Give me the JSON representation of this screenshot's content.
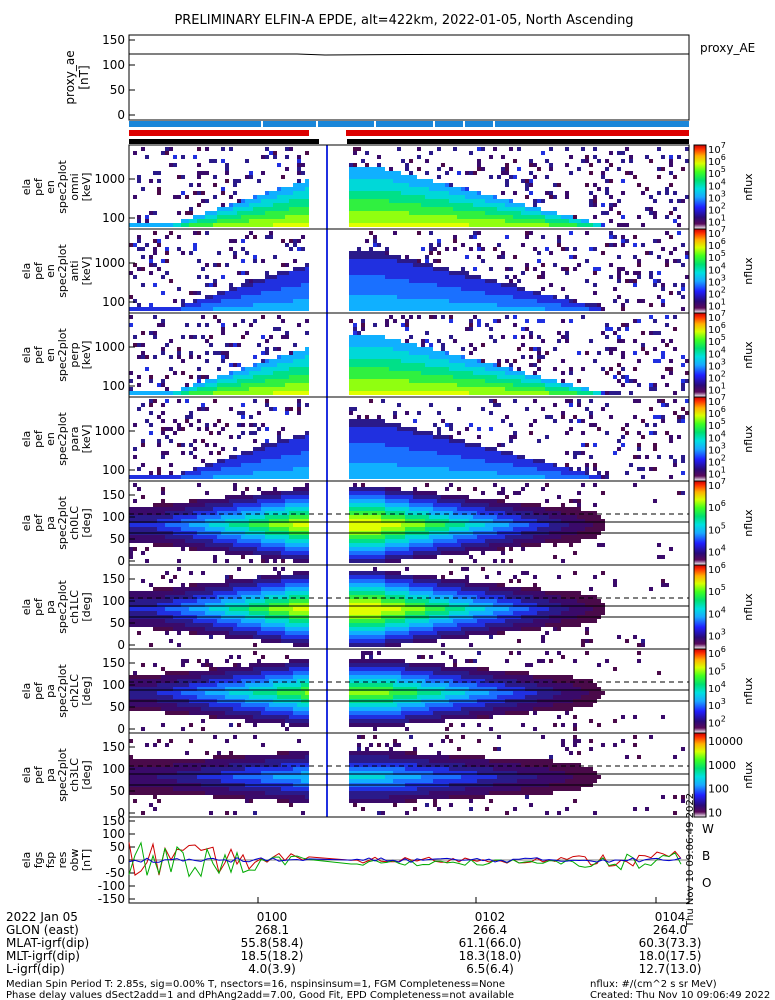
{
  "title": "PRELIMINARY ELFIN-A EPDE, alt=422km, 2022-01-05, North Ascending",
  "colors": {
    "w_line": "#cc0000",
    "b_line": "#00aa00",
    "o_line": "#0000cc",
    "day_bar": "#1a86d9",
    "sci_bar": "#dd0000",
    "axis": "#000000"
  },
  "chart_data": [
    {
      "type": "line",
      "name": "proxy_ae",
      "ylabel": [
        "proxy_ae",
        "[nT]"
      ],
      "legend": "proxy_AE",
      "yticks": [
        "150",
        "100",
        "50",
        "0"
      ],
      "ylim": [
        0,
        150
      ],
      "x": [
        0,
        0.3,
        0.35,
        0.5,
        1.0
      ],
      "y": [
        122,
        122,
        120,
        121,
        122
      ]
    },
    {
      "type": "heatmap",
      "name": "energy-omni",
      "ylabel": [
        "ela",
        "pef",
        "en",
        "spec2plot",
        "omni",
        "[keV]"
      ],
      "yticks": [
        "1000",
        "100"
      ],
      "ylim": [
        63,
        5600
      ],
      "zlabel": "nflux",
      "ztick_exponents": [
        "7",
        "6",
        "5",
        "4",
        "3",
        "2",
        "1"
      ],
      "zlim": [
        10,
        10000000
      ],
      "scale": "log"
    },
    {
      "type": "heatmap",
      "name": "energy-anti",
      "ylabel": [
        "ela",
        "pef",
        "en",
        "spec2plot",
        "anti",
        "[keV]"
      ],
      "yticks": [
        "1000",
        "100"
      ],
      "ylim": [
        63,
        5600
      ],
      "zlabel": "nflux",
      "ztick_exponents": [
        "7",
        "6",
        "5",
        "4",
        "3",
        "2",
        "1"
      ],
      "zlim": [
        10,
        10000000
      ],
      "scale": "log"
    },
    {
      "type": "heatmap",
      "name": "energy-perp",
      "ylabel": [
        "ela",
        "pef",
        "en",
        "spec2plot",
        "perp",
        "[keV]"
      ],
      "yticks": [
        "1000",
        "100"
      ],
      "ylim": [
        63,
        5600
      ],
      "zlabel": "nflux",
      "ztick_exponents": [
        "7",
        "6",
        "5",
        "4",
        "3",
        "2",
        "1"
      ],
      "zlim": [
        10,
        10000000
      ],
      "scale": "log"
    },
    {
      "type": "heatmap",
      "name": "energy-para",
      "ylabel": [
        "ela",
        "pef",
        "en",
        "spec2plot",
        "para",
        "[keV]"
      ],
      "yticks": [
        "1000",
        "100"
      ],
      "ylim": [
        63,
        5600
      ],
      "zlabel": "nflux",
      "ztick_exponents": [
        "7",
        "6",
        "5",
        "4",
        "3",
        "2",
        "1"
      ],
      "zlim": [
        10,
        10000000
      ],
      "scale": "log"
    },
    {
      "type": "heatmap",
      "name": "pitch-ch0",
      "ylabel": [
        "ela",
        "pef",
        "pa",
        "spec2plot",
        "ch0LC",
        "[deg]"
      ],
      "yticks": [
        "150",
        "100",
        "50",
        "0"
      ],
      "ylim": [
        0,
        180
      ],
      "zlabel": "nflux",
      "ztick_exponents": [
        "7",
        "6",
        "5",
        "4"
      ],
      "zlim": [
        10000,
        10000000
      ],
      "scale": "log"
    },
    {
      "type": "heatmap",
      "name": "pitch-ch1",
      "ylabel": [
        "ela",
        "pef",
        "pa",
        "spec2plot",
        "ch1LC",
        "[deg]"
      ],
      "yticks": [
        "150",
        "100",
        "50",
        "0"
      ],
      "ylim": [
        0,
        180
      ],
      "zlabel": "nflux",
      "ztick_exponents": [
        "6",
        "5",
        "4",
        "3"
      ],
      "zlim": [
        1000,
        1000000
      ],
      "scale": "log"
    },
    {
      "type": "heatmap",
      "name": "pitch-ch2",
      "ylabel": [
        "ela",
        "pef",
        "pa",
        "spec2plot",
        "ch2LC",
        "[deg]"
      ],
      "yticks": [
        "150",
        "100",
        "50",
        "0"
      ],
      "ylim": [
        0,
        180
      ],
      "zlabel": "nflux",
      "ztick_exponents": [
        "6",
        "5",
        "4",
        "3",
        "2"
      ],
      "zlim": [
        100,
        1000000
      ],
      "scale": "log"
    },
    {
      "type": "heatmap",
      "name": "pitch-ch3",
      "ylabel": [
        "ela",
        "pef",
        "pa",
        "spec2plot",
        "ch3LC",
        "[deg]"
      ],
      "yticks": [
        "150",
        "100",
        "50",
        "0"
      ],
      "ylim": [
        0,
        180
      ],
      "zlabel": "nflux",
      "zticks": [
        "10000",
        "1000",
        "100",
        "10"
      ],
      "zlim": [
        10,
        10000
      ],
      "scale": "log"
    },
    {
      "type": "line",
      "name": "fgm",
      "ylabel": [
        "ela",
        "fgs",
        "fsp",
        "res",
        "obw",
        "[nT]"
      ],
      "yticks": [
        "150",
        "100",
        "50",
        "0",
        "-50",
        "-100",
        "-150"
      ],
      "ylim": [
        -150,
        150
      ],
      "legend": [
        "W",
        "B",
        "O"
      ],
      "series": [
        {
          "name": "W",
          "color": "#cc0000"
        },
        {
          "name": "B",
          "color": "#00aa00"
        },
        {
          "name": "O",
          "color": "#0000cc"
        }
      ],
      "side_note": "Thu Nov 10 09:06:49 2022"
    }
  ],
  "xaxis": {
    "tick_labels": [
      "0100",
      "0102",
      "0104"
    ],
    "date": "2022 Jan 05",
    "rows": [
      {
        "label": "GLON (east)",
        "values": [
          "268.1",
          "266.4",
          "264.0"
        ]
      },
      {
        "label": "MLAT-igrf(dip)",
        "values": [
          "55.8(58.4)",
          "61.1(66.0)",
          "60.3(73.3)"
        ]
      },
      {
        "label": "MLT-igrf(dip)",
        "values": [
          "18.5(18.2)",
          "18.3(18.0)",
          "18.0(17.5)"
        ]
      },
      {
        "label": "L-igrf(dip)",
        "values": [
          "4.0(3.9)",
          "6.5(6.4)",
          "12.7(13.0)"
        ]
      }
    ]
  },
  "footer": {
    "line1": "Median Spin Period T: 2.85s, sig=0.00% T, nsectors=16, nspinsinsum=1, FGM Completeness=None",
    "line2": "Phase delay values dSect2add=1 and dPhAng2add=7.00, Good Fit, EPD Completeness=not available",
    "right1": "nflux: #/(cm^2 s sr MeV)",
    "right2": "Created: Thu Nov 10 09:06:49 2022"
  }
}
